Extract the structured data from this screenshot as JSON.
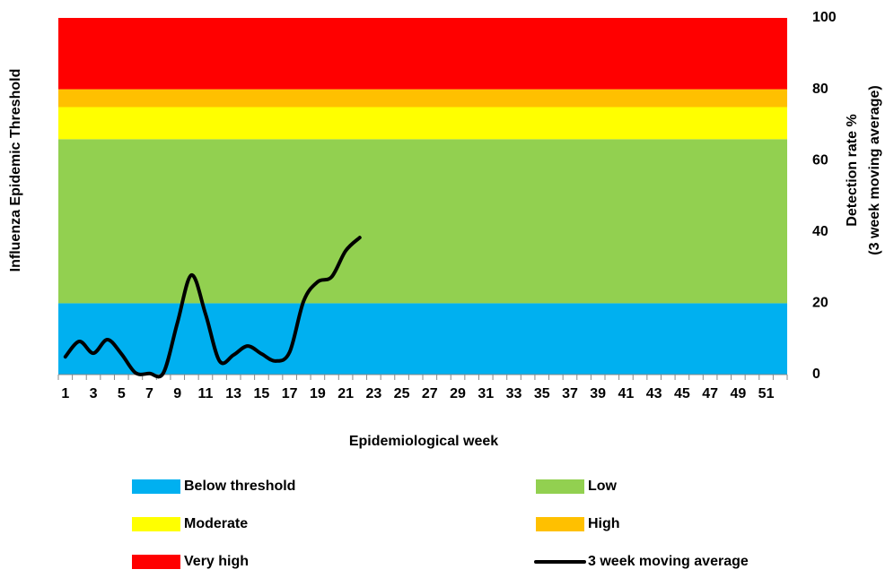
{
  "chart_data": {
    "type": "line",
    "left_label": "Influenza Epidemic Threshold",
    "xlabel": "Epidemiological week",
    "ylabel": [
      "Detection rate %",
      "(3 week moving average)"
    ],
    "categories": [
      "1",
      null,
      "3",
      null,
      "5",
      null,
      "7",
      null,
      "9",
      null,
      "11",
      null,
      "13",
      null,
      "15",
      null,
      "17",
      null,
      "19",
      null,
      "21",
      null,
      "23",
      null,
      "25",
      null,
      "27",
      null,
      "29",
      null,
      "31",
      null,
      "33",
      null,
      "35",
      null,
      "37",
      null,
      "39",
      null,
      "41",
      null,
      "43",
      null,
      "45",
      null,
      "47",
      null,
      "49",
      null,
      "51",
      null
    ],
    "ylim": [
      0,
      100
    ],
    "yticks": [
      0,
      20,
      40,
      60,
      80,
      100
    ],
    "grid": false,
    "bands": [
      {
        "name": "Below threshold",
        "color": "#00b0f0",
        "value": 20
      },
      {
        "name": "Low",
        "color": "#92d050",
        "value": 46
      },
      {
        "name": "Moderate",
        "color": "#ffff00",
        "value": 9
      },
      {
        "name": "High",
        "color": "#ffc000",
        "value": 5
      },
      {
        "name": "Very high",
        "color": "#ff0000",
        "value": 20
      }
    ],
    "series": [
      {
        "name": "3 week moving average",
        "color": "#000000",
        "values": [
          5,
          9.3,
          6,
          9.8,
          5.8,
          0.5,
          0.3,
          0.5,
          14.6,
          27.9,
          17,
          3.8,
          5.5,
          8,
          5.8,
          3.8,
          6.3,
          20.6,
          26,
          27.4,
          34.7,
          38.4,
          null,
          null,
          null,
          null,
          null,
          null,
          null,
          null,
          null,
          null,
          null,
          null,
          null,
          null,
          null,
          null,
          null,
          null,
          null,
          null,
          null,
          null,
          null,
          null,
          null,
          null,
          null,
          null,
          null,
          null
        ]
      }
    ]
  }
}
